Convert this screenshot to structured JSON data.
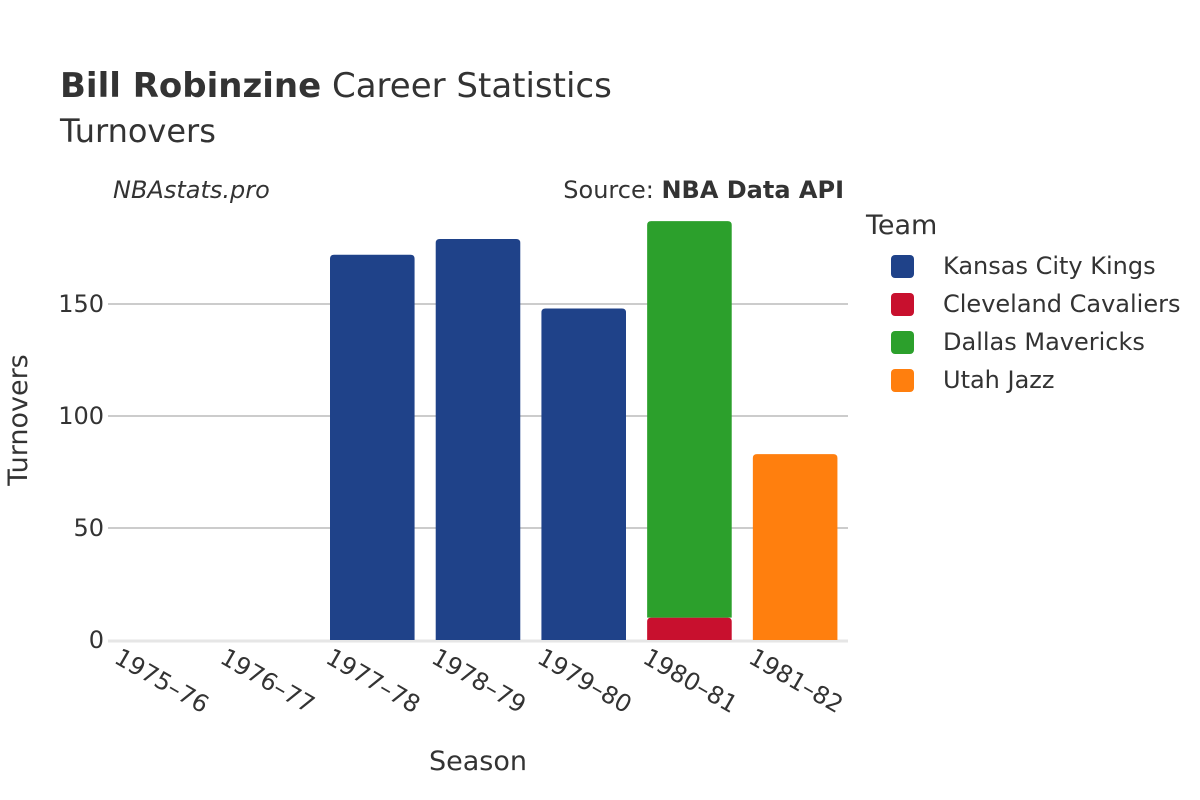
{
  "header": {
    "title_bold": "Bill Robinzine",
    "title_rest": " Career Statistics",
    "subtitle": "Turnovers",
    "credit": "NBAstats.pro",
    "source_prefix": "Source: ",
    "source_bold": "NBA Data API"
  },
  "legend": {
    "title": "Team",
    "items": [
      {
        "label": "Kansas City Kings",
        "color": "#1f4289"
      },
      {
        "label": "Cleveland Cavaliers",
        "color": "#c8102e"
      },
      {
        "label": "Dallas Mavericks",
        "color": "#2ca02c"
      },
      {
        "label": "Utah Jazz",
        "color": "#ff7f0e"
      }
    ]
  },
  "chart_data": {
    "type": "bar",
    "stacked": true,
    "xlabel": "Season",
    "ylabel": "Turnovers",
    "ylim": [
      0,
      187
    ],
    "yticks": [
      0,
      50,
      100,
      150
    ],
    "grid": true,
    "legend_position": "right",
    "categories": [
      "1975–76",
      "1976–77",
      "1977–78",
      "1978–79",
      "1979–80",
      "1980–81",
      "1981–82"
    ],
    "series": [
      {
        "name": "Kansas City Kings",
        "color": "#1f4289",
        "values": [
          null,
          null,
          172,
          179,
          148,
          null,
          null
        ]
      },
      {
        "name": "Cleveland Cavaliers",
        "color": "#c8102e",
        "values": [
          null,
          null,
          null,
          null,
          null,
          10,
          null
        ]
      },
      {
        "name": "Dallas Mavericks",
        "color": "#2ca02c",
        "values": [
          null,
          null,
          null,
          null,
          null,
          177,
          null
        ]
      },
      {
        "name": "Utah Jazz",
        "color": "#ff7f0e",
        "values": [
          null,
          null,
          null,
          null,
          null,
          null,
          83
        ]
      }
    ]
  }
}
